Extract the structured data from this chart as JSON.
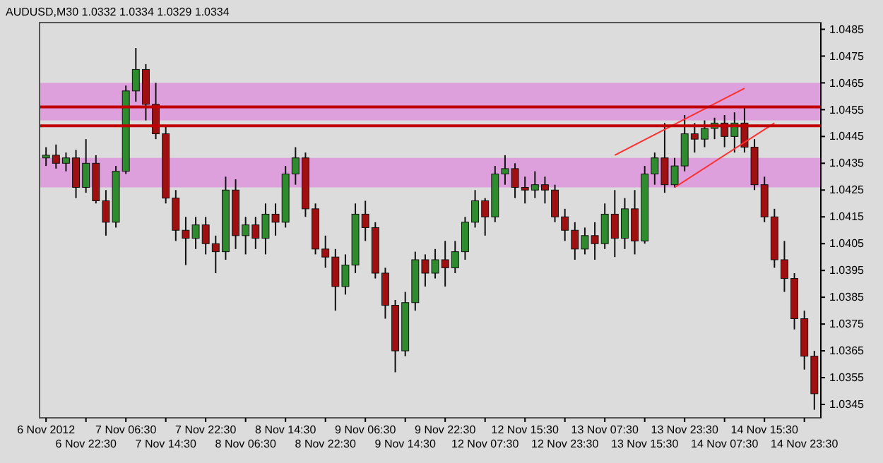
{
  "chart_data": {
    "type": "candlestick",
    "title": "AUDUSD,M30  1.0332 1.0334 1.0329 1.0334",
    "categories": [
      "6 Nov 2012",
      null,
      null,
      null,
      "6 Nov 22:30",
      null,
      null,
      null,
      "7 Nov 06:30",
      null,
      null,
      null,
      "7 Nov 14:30",
      null,
      null,
      null,
      "7 Nov 22:30",
      null,
      null,
      null,
      "8 Nov 06:30",
      null,
      null,
      null,
      "8 Nov 14:30",
      null,
      null,
      null,
      "8 Nov 22:30",
      null,
      null,
      null,
      "9 Nov 06:30",
      null,
      null,
      null,
      "9 Nov 14:30",
      null,
      null,
      null,
      "9 Nov 22:30",
      null,
      null,
      null,
      "12 Nov 07:30",
      null,
      null,
      null,
      "12 Nov 15:30",
      null,
      null,
      null,
      "12 Nov 23:30",
      null,
      null,
      null,
      "13 Nov 07:30",
      null,
      null,
      null,
      "13 Nov 15:30",
      null,
      null,
      null,
      "13 Nov 23:30",
      null,
      null,
      null,
      "14 Nov 07:30",
      null,
      null,
      null,
      "14 Nov 15:30",
      null,
      null,
      null,
      "14 Nov 23:30",
      null
    ],
    "ohlc": [
      [
        1.0437,
        1.0441,
        1.0434,
        1.0438
      ],
      [
        1.0438,
        1.0442,
        1.0433,
        1.0435
      ],
      [
        1.0435,
        1.0439,
        1.0432,
        1.0437
      ],
      [
        1.0437,
        1.044,
        1.0422,
        1.0426
      ],
      [
        1.0426,
        1.0444,
        1.0424,
        1.0435
      ],
      [
        1.0435,
        1.0438,
        1.042,
        1.0421
      ],
      [
        1.0421,
        1.0425,
        1.0408,
        1.0413
      ],
      [
        1.0413,
        1.0434,
        1.0411,
        1.0432
      ],
      [
        1.0432,
        1.0464,
        1.0431,
        1.0462
      ],
      [
        1.0462,
        1.0478,
        1.0458,
        1.047
      ],
      [
        1.047,
        1.0472,
        1.0451,
        1.0457
      ],
      [
        1.0457,
        1.0465,
        1.0444,
        1.0446
      ],
      [
        1.0446,
        1.0449,
        1.042,
        1.0422
      ],
      [
        1.0422,
        1.0425,
        1.0406,
        1.041
      ],
      [
        1.041,
        1.0415,
        1.0397,
        1.0407
      ],
      [
        1.0407,
        1.0415,
        1.0403,
        1.0412
      ],
      [
        1.0412,
        1.0415,
        1.0401,
        1.0405
      ],
      [
        1.0405,
        1.0408,
        1.0394,
        1.0402
      ],
      [
        1.0402,
        1.043,
        1.0399,
        1.0425
      ],
      [
        1.0425,
        1.0429,
        1.0403,
        1.0408
      ],
      [
        1.0408,
        1.0415,
        1.0401,
        1.0412
      ],
      [
        1.0412,
        1.0415,
        1.0403,
        1.0407
      ],
      [
        1.0407,
        1.042,
        1.0401,
        1.0416
      ],
      [
        1.0416,
        1.042,
        1.0408,
        1.0413
      ],
      [
        1.0413,
        1.0434,
        1.0411,
        1.0431
      ],
      [
        1.0431,
        1.0441,
        1.0427,
        1.0437
      ],
      [
        1.0437,
        1.0439,
        1.0415,
        1.0418
      ],
      [
        1.0418,
        1.042,
        1.0401,
        1.0403
      ],
      [
        1.0403,
        1.0408,
        1.0396,
        1.04
      ],
      [
        1.04,
        1.0403,
        1.038,
        1.0389
      ],
      [
        1.0389,
        1.0401,
        1.0386,
        1.0397
      ],
      [
        1.0397,
        1.042,
        1.0394,
        1.0416
      ],
      [
        1.0416,
        1.0421,
        1.0406,
        1.0411
      ],
      [
        1.0411,
        1.0413,
        1.0392,
        1.0394
      ],
      [
        1.0394,
        1.0396,
        1.0377,
        1.0382
      ],
      [
        1.0382,
        1.0384,
        1.0357,
        1.0365
      ],
      [
        1.0365,
        1.0387,
        1.0363,
        1.0383
      ],
      [
        1.0383,
        1.0402,
        1.038,
        1.0399
      ],
      [
        1.0399,
        1.0401,
        1.0389,
        1.0394
      ],
      [
        1.0394,
        1.0403,
        1.0392,
        1.0399
      ],
      [
        1.0399,
        1.0406,
        1.0389,
        1.0396
      ],
      [
        1.0396,
        1.0406,
        1.0394,
        1.0402
      ],
      [
        1.0402,
        1.0415,
        1.0399,
        1.0413
      ],
      [
        1.0413,
        1.0425,
        1.0411,
        1.0421
      ],
      [
        1.0421,
        1.0422,
        1.0408,
        1.0415
      ],
      [
        1.0415,
        1.0434,
        1.0413,
        1.0431
      ],
      [
        1.0431,
        1.0438,
        1.0427,
        1.0433
      ],
      [
        1.0433,
        1.0435,
        1.0422,
        1.0426
      ],
      [
        1.0426,
        1.043,
        1.042,
        1.0425
      ],
      [
        1.0425,
        1.0432,
        1.0422,
        1.0427
      ],
      [
        1.0427,
        1.043,
        1.042,
        1.0425
      ],
      [
        1.0425,
        1.0427,
        1.0413,
        1.0415
      ],
      [
        1.0415,
        1.0418,
        1.0406,
        1.041
      ],
      [
        1.041,
        1.0413,
        1.0399,
        1.0403
      ],
      [
        1.0403,
        1.0411,
        1.0401,
        1.0408
      ],
      [
        1.0408,
        1.0413,
        1.0399,
        1.0405
      ],
      [
        1.0405,
        1.042,
        1.0403,
        1.0416
      ],
      [
        1.0416,
        1.0425,
        1.04,
        1.0407
      ],
      [
        1.0407,
        1.0422,
        1.0403,
        1.0418
      ],
      [
        1.0418,
        1.0425,
        1.0401,
        1.0406
      ],
      [
        1.0406,
        1.0434,
        1.0405,
        1.0431
      ],
      [
        1.0431,
        1.0439,
        1.0427,
        1.0437
      ],
      [
        1.0437,
        1.045,
        1.0424,
        1.0427
      ],
      [
        1.0427,
        1.0437,
        1.0426,
        1.0434
      ],
      [
        1.0434,
        1.0453,
        1.0432,
        1.0446
      ],
      [
        1.0446,
        1.045,
        1.0439,
        1.0444
      ],
      [
        1.0444,
        1.0451,
        1.0441,
        1.0448
      ],
      [
        1.0448,
        1.0452,
        1.0444,
        1.045
      ],
      [
        1.045,
        1.0453,
        1.0441,
        1.0445
      ],
      [
        1.0445,
        1.0454,
        1.0439,
        1.045
      ],
      [
        1.045,
        1.0456,
        1.0439,
        1.0441
      ],
      [
        1.0441,
        1.0444,
        1.0425,
        1.0427
      ],
      [
        1.0427,
        1.043,
        1.0413,
        1.0415
      ],
      [
        1.0415,
        1.0418,
        1.0396,
        1.0399
      ],
      [
        1.0399,
        1.0406,
        1.0387,
        1.0392
      ],
      [
        1.0392,
        1.0394,
        1.0373,
        1.0377
      ],
      [
        1.0377,
        1.038,
        1.0358,
        1.0363
      ],
      [
        1.0363,
        1.0365,
        1.0343,
        1.0349
      ]
    ],
    "series": [
      {
        "type": "line",
        "color": "#ff3030",
        "values": [
          null,
          null,
          null,
          null,
          null,
          null,
          null,
          null,
          null,
          null,
          null,
          null,
          null,
          null,
          null,
          null,
          null,
          null,
          null,
          null,
          null,
          null,
          null,
          null,
          null,
          null,
          null,
          null,
          null,
          null,
          null,
          null,
          null,
          null,
          null,
          null,
          null,
          null,
          null,
          null,
          null,
          null,
          null,
          null,
          null,
          null,
          null,
          null,
          null,
          null,
          null,
          null,
          null,
          null,
          null,
          null,
          null,
          1.0438,
          null,
          null,
          null,
          null,
          null,
          null,
          null,
          null,
          null,
          null,
          null,
          null,
          1.0463,
          null,
          null,
          null,
          null,
          null,
          null,
          null
        ]
      },
      {
        "type": "line",
        "color": "#ff3030",
        "values": [
          null,
          null,
          null,
          null,
          null,
          null,
          null,
          null,
          null,
          null,
          null,
          null,
          null,
          null,
          null,
          null,
          null,
          null,
          null,
          null,
          null,
          null,
          null,
          null,
          null,
          null,
          null,
          null,
          null,
          null,
          null,
          null,
          null,
          null,
          null,
          null,
          null,
          null,
          null,
          null,
          null,
          null,
          null,
          null,
          null,
          null,
          null,
          null,
          null,
          null,
          null,
          null,
          null,
          null,
          null,
          null,
          null,
          null,
          null,
          null,
          null,
          null,
          null,
          1.0426,
          null,
          null,
          null,
          null,
          null,
          null,
          null,
          null,
          null,
          1.045,
          null,
          null,
          null,
          null
        ]
      }
    ],
    "ylim": [
      1.034,
      1.04875
    ],
    "yticks": [
      1.0345,
      1.0355,
      1.0365,
      1.0375,
      1.0385,
      1.0395,
      1.0405,
      1.0415,
      1.0425,
      1.0435,
      1.0445,
      1.0455,
      1.0465,
      1.0475,
      1.0485
    ],
    "bands": [
      {
        "axis": "y",
        "from": 1.0451,
        "to": 1.0465,
        "color": "#dda0dd"
      },
      {
        "axis": "y",
        "from": 1.0426,
        "to": 1.0437,
        "color": "#dda0dd"
      }
    ],
    "ref_lines": [
      {
        "axis": "y",
        "value": 1.0456,
        "color": "#c00000"
      },
      {
        "axis": "y",
        "value": 1.0449,
        "color": "#c00000"
      }
    ],
    "grid": false
  }
}
